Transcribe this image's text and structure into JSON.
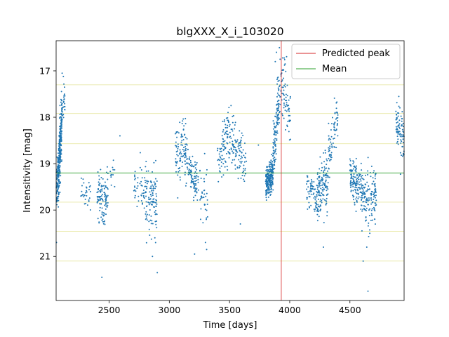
{
  "chart_data": {
    "type": "scatter",
    "title": "blgXXX_X_i_103020",
    "xlabel": "Time [days]",
    "ylabel": "Intensitivity [mag]",
    "xlim": [
      2060,
      4950
    ],
    "ylim": [
      21.95,
      16.35
    ],
    "y_inverted": true,
    "grid": false,
    "legend_position": "top-right",
    "xticks": [
      2500,
      3000,
      3500,
      4000,
      4500
    ],
    "yticks": [
      17,
      18,
      19,
      20,
      21
    ],
    "point_color": "#1f77b4",
    "predicted_peak": {
      "label": "Predicted peak",
      "x": 3930,
      "color": "#d62728"
    },
    "mean": {
      "label": "Mean",
      "y": 19.2,
      "color": "#2ca02c"
    },
    "reference_lines": {
      "color": "#e8e8a6",
      "y": [
        17.3,
        17.92,
        18.57,
        19.83,
        20.46,
        21.1
      ]
    },
    "clusters": [
      {
        "x0": 2062,
        "x1": 2078,
        "n": 70,
        "trend": [
          [
            0,
            19.6
          ],
          [
            1,
            19.2
          ]
        ],
        "sd": 0.25
      },
      {
        "x0": 2078,
        "x1": 2092,
        "n": 120,
        "trend": [
          [
            0,
            19.3
          ],
          [
            1,
            18.6
          ]
        ],
        "sd": 0.3
      },
      {
        "x0": 2092,
        "x1": 2108,
        "n": 130,
        "trend": [
          [
            0,
            18.8
          ],
          [
            1,
            18.0
          ]
        ],
        "sd": 0.3
      },
      {
        "x0": 2108,
        "x1": 2135,
        "n": 25,
        "trend": [
          [
            0,
            17.9
          ],
          [
            1,
            17.6
          ]
        ],
        "sd": 0.15
      },
      {
        "x0": 2265,
        "x1": 2350,
        "n": 30,
        "trend": [
          [
            0,
            19.5
          ],
          [
            1,
            19.7
          ]
        ],
        "sd": 0.2
      },
      {
        "x0": 2400,
        "x1": 2490,
        "n": 110,
        "trend": [
          [
            0,
            19.6
          ],
          [
            0.5,
            19.8
          ],
          [
            1,
            19.7
          ]
        ],
        "sd": 0.25
      },
      {
        "x0": 2490,
        "x1": 2560,
        "n": 14,
        "trend": [
          [
            0,
            19.3
          ],
          [
            1,
            19.2
          ]
        ],
        "sd": 0.2
      },
      {
        "x0": 2700,
        "x1": 2800,
        "n": 45,
        "trend": [
          [
            0,
            19.3
          ],
          [
            1,
            19.6
          ]
        ],
        "sd": 0.25
      },
      {
        "x0": 2800,
        "x1": 2900,
        "n": 110,
        "trend": [
          [
            0,
            19.6
          ],
          [
            1,
            19.9
          ]
        ],
        "sd": 0.35
      },
      {
        "x0": 3050,
        "x1": 3160,
        "n": 110,
        "trend": [
          [
            0,
            18.9
          ],
          [
            0.5,
            18.6
          ],
          [
            1,
            18.9
          ]
        ],
        "sd": 0.3
      },
      {
        "x0": 3160,
        "x1": 3230,
        "n": 80,
        "trend": [
          [
            0,
            19.1
          ],
          [
            1,
            19.4
          ]
        ],
        "sd": 0.2
      },
      {
        "x0": 3230,
        "x1": 3320,
        "n": 40,
        "trend": [
          [
            0,
            19.5
          ],
          [
            1,
            19.9
          ]
        ],
        "sd": 0.35
      },
      {
        "x0": 3400,
        "x1": 3530,
        "n": 110,
        "trend": [
          [
            0,
            19.0
          ],
          [
            0.6,
            18.4
          ],
          [
            1,
            18.6
          ]
        ],
        "sd": 0.3
      },
      {
        "x0": 3530,
        "x1": 3640,
        "n": 90,
        "trend": [
          [
            0,
            18.5
          ],
          [
            1,
            18.9
          ]
        ],
        "sd": 0.3
      },
      {
        "x0": 3800,
        "x1": 3862,
        "n": 220,
        "trend": [
          [
            0,
            19.45
          ],
          [
            1,
            19.2
          ]
        ],
        "sd": 0.17
      },
      {
        "x0": 3862,
        "x1": 3910,
        "n": 120,
        "trend": [
          [
            0,
            18.8
          ],
          [
            1,
            17.6
          ]
        ],
        "sd": 0.3
      },
      {
        "x0": 3910,
        "x1": 4010,
        "n": 90,
        "trend": [
          [
            0,
            17.5
          ],
          [
            0.4,
            17.4
          ],
          [
            1,
            18.2
          ]
        ],
        "sd": 0.35
      },
      {
        "x0": 4140,
        "x1": 4230,
        "n": 70,
        "trend": [
          [
            0,
            19.5
          ],
          [
            1,
            19.7
          ]
        ],
        "sd": 0.2
      },
      {
        "x0": 4230,
        "x1": 4320,
        "n": 140,
        "trend": [
          [
            0,
            19.7
          ],
          [
            1,
            19.3
          ]
        ],
        "sd": 0.3
      },
      {
        "x0": 4320,
        "x1": 4400,
        "n": 70,
        "trend": [
          [
            0,
            18.9
          ],
          [
            1,
            17.8
          ]
        ],
        "sd": 0.3
      },
      {
        "x0": 4500,
        "x1": 4600,
        "n": 140,
        "trend": [
          [
            0,
            19.2
          ],
          [
            1,
            19.6
          ]
        ],
        "sd": 0.25
      },
      {
        "x0": 4600,
        "x1": 4720,
        "n": 140,
        "trend": [
          [
            0,
            19.6
          ],
          [
            0.5,
            19.8
          ],
          [
            1,
            19.5
          ]
        ],
        "sd": 0.3
      },
      {
        "x0": 4880,
        "x1": 4950,
        "n": 80,
        "trend": [
          [
            0,
            18.0
          ],
          [
            1,
            18.5
          ]
        ],
        "sd": 0.3
      }
    ],
    "outliers": [
      [
        2063,
        20.7
      ],
      [
        2110,
        17.05
      ],
      [
        2120,
        17.12
      ],
      [
        2130,
        17.35
      ],
      [
        2440,
        21.45
      ],
      [
        2860,
        21.0
      ],
      [
        2900,
        21.35
      ],
      [
        2880,
        20.6
      ],
      [
        3260,
        20.2
      ],
      [
        3300,
        20.7
      ],
      [
        3310,
        20.85
      ],
      [
        3210,
        20.95
      ],
      [
        3590,
        20.3
      ],
      [
        3880,
        16.8
      ],
      [
        3890,
        16.6
      ],
      [
        3920,
        16.75
      ],
      [
        4610,
        21.1
      ],
      [
        4650,
        21.75
      ],
      [
        4640,
        20.8
      ],
      [
        4600,
        20.45
      ],
      [
        2590,
        18.4
      ],
      [
        3740,
        18.6
      ],
      [
        4280,
        20.8
      ]
    ]
  }
}
